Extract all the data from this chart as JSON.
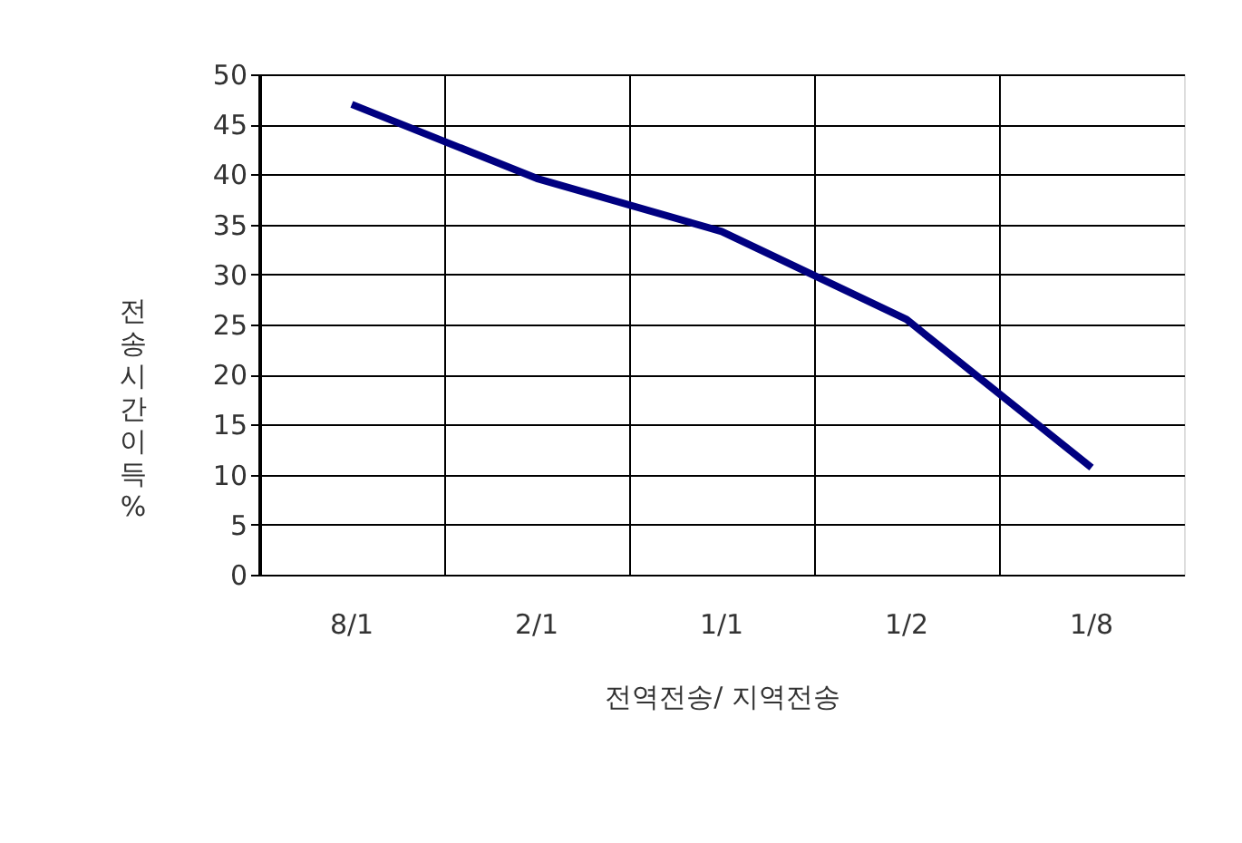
{
  "chart_data": {
    "type": "line",
    "xlabel": "전역전송/ 지역전송",
    "ylabel": "전송시간 이득%",
    "categories": [
      "8/1",
      "2/1",
      "1/1",
      "1/2",
      "1/8"
    ],
    "series": [
      {
        "color": "#000080",
        "values": [
          47.0,
          39.6,
          34.3,
          25.5,
          10.7
        ]
      }
    ],
    "ylim": [
      0,
      50
    ],
    "yticks": [
      0,
      5,
      10,
      15,
      20,
      25,
      30,
      35,
      40,
      45,
      50
    ],
    "grid": true,
    "legend": false,
    "marker": "none",
    "line_style": "solid"
  }
}
